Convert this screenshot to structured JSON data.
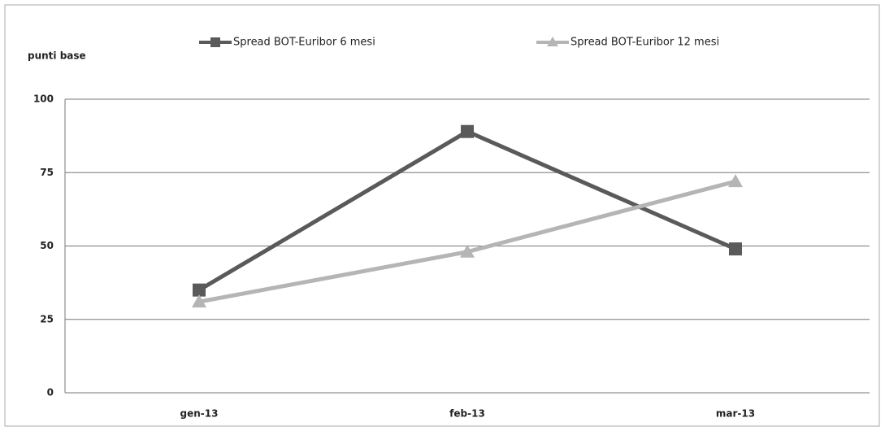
{
  "chart_data": {
    "type": "line",
    "y_label": "punti base",
    "categories": [
      "gen-13",
      "feb-13",
      "mar-13"
    ],
    "series": [
      {
        "name": "Spread BOT-Euribor 6 mesi",
        "color": "#5a5a5a",
        "marker": "square",
        "values": [
          35,
          89,
          49
        ]
      },
      {
        "name": "Spread BOT-Euribor 12 mesi",
        "color": "#b5b5b5",
        "marker": "triangle",
        "values": [
          31,
          48,
          72
        ]
      }
    ],
    "ylim": [
      0,
      100
    ],
    "yticks": [
      0,
      25,
      50,
      75,
      100
    ],
    "grid": true
  }
}
